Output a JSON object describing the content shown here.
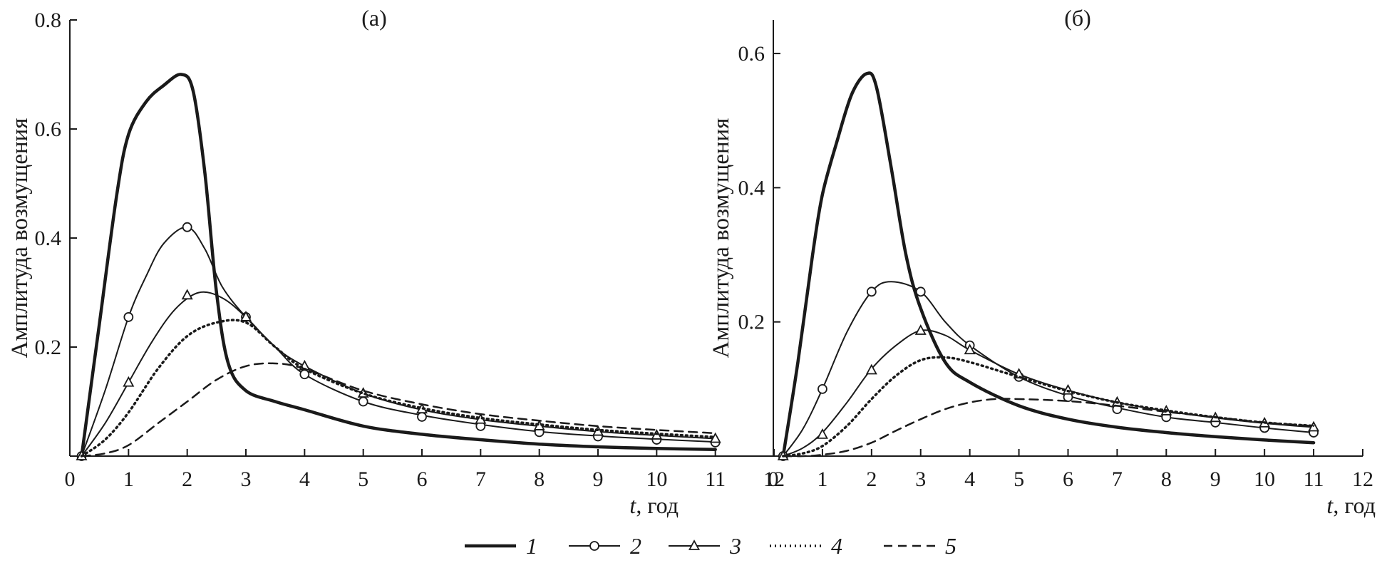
{
  "legend": [
    {
      "label": "1",
      "style": "thick"
    },
    {
      "label": "2",
      "style": "circle"
    },
    {
      "label": "3",
      "style": "triangle"
    },
    {
      "label": "4",
      "style": "dotted"
    },
    {
      "label": "5",
      "style": "dashed"
    }
  ],
  "chart_data": [
    {
      "type": "line",
      "title": "(а)",
      "xlabel_var": "t",
      "xlabel_unit": ", год",
      "ylabel": "Амплитуда возмущения",
      "xlim": [
        0,
        12
      ],
      "ylim": [
        0,
        0.8
      ],
      "xticks": [
        0,
        1,
        2,
        3,
        4,
        5,
        6,
        7,
        8,
        9,
        10,
        11,
        12
      ],
      "yticks": [
        0.2,
        0.4,
        0.6,
        0.8
      ],
      "ytick_labels": [
        "0.2",
        "0.4",
        "0.6",
        "0.8"
      ],
      "grid": false,
      "series": [
        {
          "name": "1",
          "style": "thick",
          "x": [
            0.2,
            0.5,
            0.8,
            1.0,
            1.3,
            1.6,
            1.9,
            2.1,
            2.3,
            2.5,
            2.7,
            3.0,
            3.5,
            4.0,
            5,
            6,
            7,
            8,
            9,
            10,
            11
          ],
          "y": [
            0.0,
            0.24,
            0.48,
            0.59,
            0.65,
            0.68,
            0.7,
            0.67,
            0.52,
            0.3,
            0.17,
            0.12,
            0.1,
            0.085,
            0.055,
            0.04,
            0.03,
            0.022,
            0.017,
            0.014,
            0.012
          ]
        },
        {
          "name": "2",
          "style": "circle",
          "x": [
            0.2,
            0.6,
            1.0,
            1.3,
            1.6,
            2.0,
            2.3,
            2.6,
            3.0,
            3.5,
            4.0,
            5,
            6,
            7,
            8,
            9,
            10,
            11
          ],
          "y": [
            0.0,
            0.12,
            0.255,
            0.33,
            0.39,
            0.42,
            0.38,
            0.31,
            0.255,
            0.2,
            0.15,
            0.1,
            0.075,
            0.058,
            0.045,
            0.037,
            0.031,
            0.026
          ],
          "markers": [
            [
              0.2,
              0.0
            ],
            [
              1,
              0.255
            ],
            [
              2,
              0.42
            ],
            [
              3,
              0.255
            ],
            [
              4,
              0.15
            ],
            [
              5,
              0.1
            ],
            [
              6,
              0.072
            ],
            [
              7,
              0.055
            ],
            [
              8,
              0.044
            ],
            [
              9,
              0.036
            ],
            [
              10,
              0.03
            ],
            [
              11,
              0.025
            ]
          ]
        },
        {
          "name": "3",
          "style": "triangle",
          "x": [
            0.2,
            0.6,
            1.0,
            1.4,
            1.8,
            2.2,
            2.6,
            3.0,
            3.5,
            4.0,
            5,
            6,
            7,
            8,
            9,
            10,
            11
          ],
          "y": [
            0.0,
            0.06,
            0.135,
            0.21,
            0.27,
            0.3,
            0.29,
            0.255,
            0.2,
            0.165,
            0.115,
            0.085,
            0.067,
            0.055,
            0.045,
            0.038,
            0.032
          ],
          "markers": [
            [
              0.2,
              0.0
            ],
            [
              1,
              0.135
            ],
            [
              2,
              0.295
            ],
            [
              3,
              0.255
            ],
            [
              4,
              0.165
            ],
            [
              5,
              0.115
            ],
            [
              6,
              0.086
            ],
            [
              7,
              0.067
            ],
            [
              8,
              0.055
            ],
            [
              9,
              0.045
            ],
            [
              10,
              0.038
            ],
            [
              11,
              0.032
            ]
          ]
        },
        {
          "name": "4",
          "style": "dotted",
          "x": [
            0.2,
            0.6,
            1.0,
            1.5,
            2.0,
            2.5,
            3.0,
            3.5,
            4.0,
            5,
            6,
            7,
            8,
            9,
            10,
            11
          ],
          "y": [
            0.0,
            0.03,
            0.08,
            0.16,
            0.22,
            0.245,
            0.245,
            0.2,
            0.16,
            0.115,
            0.088,
            0.07,
            0.058,
            0.048,
            0.041,
            0.035
          ]
        },
        {
          "name": "5",
          "style": "dashed",
          "x": [
            0.2,
            0.6,
            1.0,
            1.5,
            2.0,
            2.5,
            3.0,
            3.5,
            4.0,
            5,
            6,
            7,
            8,
            9,
            10,
            11
          ],
          "y": [
            0.0,
            0.005,
            0.02,
            0.06,
            0.1,
            0.14,
            0.165,
            0.17,
            0.16,
            0.12,
            0.095,
            0.077,
            0.065,
            0.055,
            0.048,
            0.042
          ]
        }
      ]
    },
    {
      "type": "line",
      "title": "(б)",
      "xlabel_var": "t",
      "xlabel_unit": ", год",
      "ylabel": "Амплитуда возмущения",
      "xlim": [
        0,
        12
      ],
      "ylim": [
        0,
        0.65
      ],
      "xticks": [
        0,
        1,
        2,
        3,
        4,
        5,
        6,
        7,
        8,
        9,
        10,
        11,
        12
      ],
      "yticks": [
        0.2,
        0.4,
        0.6
      ],
      "ytick_labels": [
        "0.2",
        "0.4",
        "0.6"
      ],
      "grid": false,
      "series": [
        {
          "name": "1",
          "style": "thick",
          "x": [
            0.2,
            0.5,
            0.8,
            1.0,
            1.3,
            1.6,
            1.9,
            2.1,
            2.4,
            2.7,
            3.0,
            3.5,
            4.0,
            5,
            6,
            7,
            8,
            9,
            10,
            11
          ],
          "y": [
            0.0,
            0.14,
            0.3,
            0.39,
            0.47,
            0.54,
            0.57,
            0.55,
            0.43,
            0.3,
            0.22,
            0.14,
            0.11,
            0.075,
            0.055,
            0.043,
            0.035,
            0.029,
            0.024,
            0.02
          ]
        },
        {
          "name": "2",
          "style": "circle",
          "x": [
            0.2,
            0.6,
            1.0,
            1.5,
            2.0,
            2.4,
            3.0,
            3.5,
            4.0,
            5,
            6,
            7,
            8,
            9,
            10,
            11
          ],
          "y": [
            0.0,
            0.04,
            0.1,
            0.185,
            0.245,
            0.26,
            0.245,
            0.2,
            0.165,
            0.118,
            0.09,
            0.072,
            0.058,
            0.05,
            0.042,
            0.035
          ],
          "markers": [
            [
              0.2,
              0.0
            ],
            [
              1,
              0.1
            ],
            [
              2,
              0.245
            ],
            [
              3,
              0.245
            ],
            [
              4,
              0.165
            ],
            [
              5,
              0.118
            ],
            [
              6,
              0.088
            ],
            [
              7,
              0.07
            ],
            [
              8,
              0.058
            ],
            [
              9,
              0.05
            ],
            [
              10,
              0.042
            ],
            [
              11,
              0.035
            ]
          ]
        },
        {
          "name": "3",
          "style": "triangle",
          "x": [
            0.2,
            0.6,
            1.0,
            1.5,
            2.0,
            2.5,
            3.0,
            3.5,
            4.0,
            5,
            6,
            7,
            8,
            9,
            10,
            11
          ],
          "y": [
            0.0,
            0.012,
            0.035,
            0.08,
            0.13,
            0.165,
            0.187,
            0.18,
            0.158,
            0.122,
            0.098,
            0.08,
            0.067,
            0.057,
            0.049,
            0.043
          ],
          "markers": [
            [
              0.2,
              0.0
            ],
            [
              1,
              0.032
            ],
            [
              2,
              0.128
            ],
            [
              3,
              0.187
            ],
            [
              4,
              0.158
            ],
            [
              5,
              0.122
            ],
            [
              6,
              0.098
            ],
            [
              7,
              0.08
            ],
            [
              8,
              0.067
            ],
            [
              9,
              0.057
            ],
            [
              10,
              0.049
            ],
            [
              11,
              0.043
            ]
          ]
        },
        {
          "name": "4",
          "style": "dotted",
          "x": [
            0.2,
            0.6,
            1.0,
            1.5,
            2.0,
            2.5,
            3.0,
            3.5,
            4.0,
            5,
            6,
            7,
            8,
            9,
            10,
            11
          ],
          "y": [
            0.0,
            0.004,
            0.015,
            0.045,
            0.085,
            0.12,
            0.143,
            0.147,
            0.14,
            0.118,
            0.097,
            0.08,
            0.068,
            0.058,
            0.05,
            0.045
          ]
        },
        {
          "name": "5",
          "style": "dashed",
          "x": [
            0.2,
            0.6,
            1.0,
            1.5,
            2.0,
            2.5,
            3.0,
            3.5,
            4.0,
            4.5,
            5,
            6,
            7,
            8,
            9,
            10,
            11
          ],
          "y": [
            0.0,
            0.0,
            0.002,
            0.008,
            0.02,
            0.038,
            0.055,
            0.07,
            0.08,
            0.085,
            0.085,
            0.082,
            0.075,
            0.066,
            0.058,
            0.05,
            0.045
          ]
        }
      ]
    }
  ]
}
